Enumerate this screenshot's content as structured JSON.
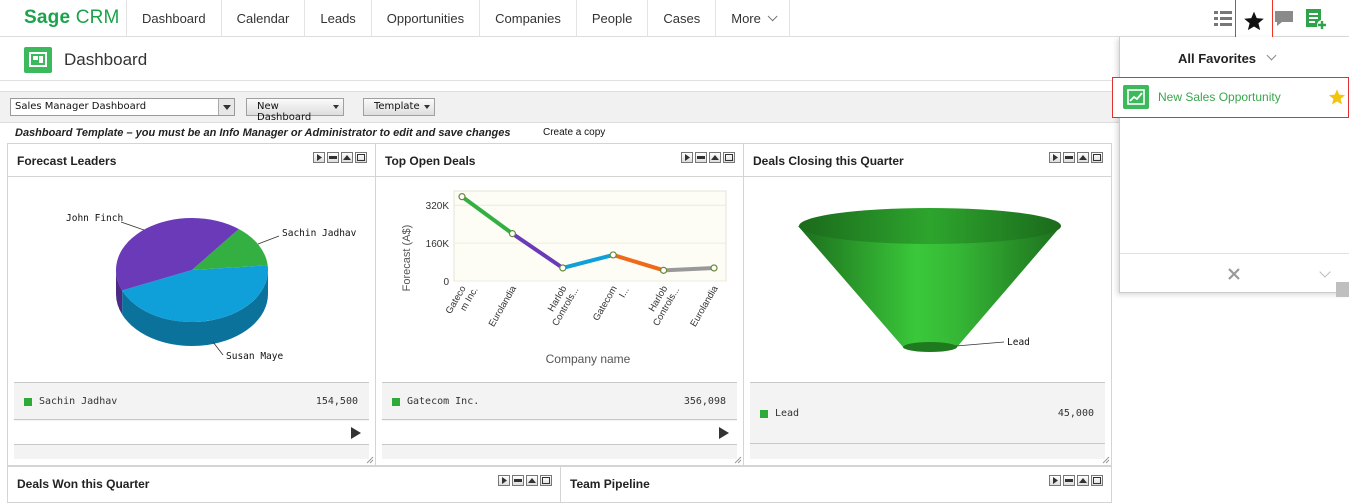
{
  "app": {
    "logo_primary": "Sage",
    "logo_secondary": "CRM",
    "brand_color": "#1aa34a"
  },
  "nav": {
    "items": [
      {
        "label": "Dashboard"
      },
      {
        "label": "Calendar"
      },
      {
        "label": "Leads"
      },
      {
        "label": "Opportunities"
      },
      {
        "label": "Companies"
      },
      {
        "label": "People"
      },
      {
        "label": "Cases"
      },
      {
        "label": "More"
      }
    ],
    "tool_icons": [
      "list-icon",
      "star-icon",
      "chat-icon",
      "add-note-icon"
    ]
  },
  "page": {
    "title": "Dashboard",
    "icon": "dashboard-icon"
  },
  "toolbar": {
    "dashboard_select": "Sales Manager Dashboard",
    "new_dashboard_label": "New Dashboard",
    "template_label": "Template"
  },
  "notice": {
    "text": "Dashboard Template – you must be an Info Manager or Administrator to edit and save changes",
    "link": "Create a copy"
  },
  "gadgets": {
    "forecast_leaders": {
      "title": "Forecast Leaders",
      "legend_name": "Sachin Jadhav",
      "legend_value": "154,500",
      "chart_data": {
        "type": "pie",
        "labels": [
          "John Finch",
          "Sachin Jadhav",
          "Susan Maye"
        ],
        "values": [
          42,
          13,
          45
        ],
        "colors": [
          "#6a3ab8",
          "#34b043",
          "#0f9fd9"
        ]
      }
    },
    "top_open_deals": {
      "title": "Top Open Deals",
      "legend_name": "Gatecom Inc.",
      "legend_value": "356,098",
      "chart_data": {
        "type": "line",
        "categories": [
          "Gateco m Inc.",
          "Eurolandia",
          "Harlob Controls...",
          "Gatecom I...",
          "Harlob Controls...",
          "Eurolandia"
        ],
        "values": [
          356098,
          200000,
          55000,
          110000,
          45000,
          55000
        ],
        "ylabel": "Forecast (A$)",
        "xlabel": "Company name",
        "yticks": [
          "0",
          "160K",
          "320K"
        ],
        "ylim": [
          0,
          380000
        ],
        "segment_colors": [
          "#34b043",
          "#6a3ab8",
          "#0f9fd9",
          "#ee6a1a",
          "#999999"
        ]
      }
    },
    "deals_closing": {
      "title": "Deals Closing this Quarter",
      "legend_name": "Lead",
      "legend_value": "45,000",
      "chart_data": {
        "type": "funnel",
        "labels": [
          "Lead"
        ],
        "values": [
          45000
        ]
      },
      "funnel_label": "Lead"
    },
    "deals_won": {
      "title": "Deals Won this Quarter"
    },
    "team_pipeline": {
      "title": "Team Pipeline"
    }
  },
  "favorites": {
    "title": "All Favorites",
    "items": [
      {
        "label": "New Sales Opportunity",
        "icon": "opportunity-icon",
        "star_color": "#f2c40f"
      }
    ]
  }
}
